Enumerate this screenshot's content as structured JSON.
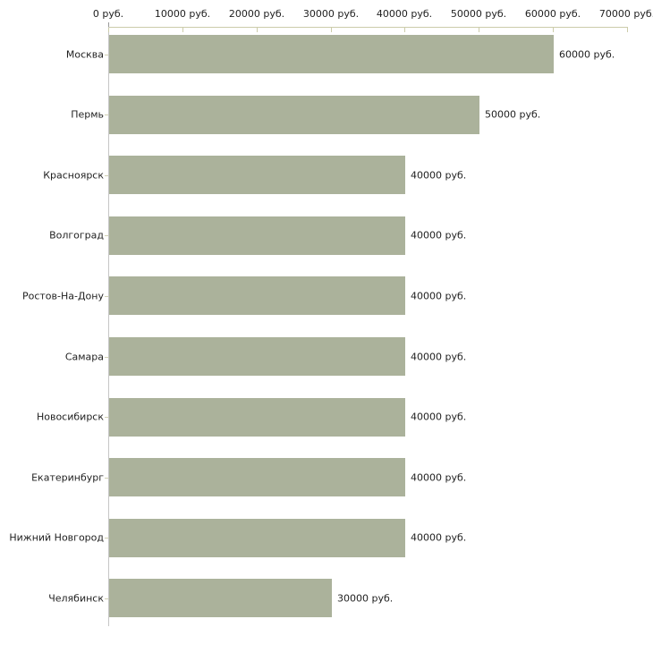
{
  "chart_data": {
    "type": "bar",
    "orientation": "horizontal",
    "title": "",
    "categories": [
      "Москва",
      "Пермь",
      "Красноярск",
      "Волгоград",
      "Ростов-На-Дону",
      "Самара",
      "Новосибирск",
      "Екатеринбург",
      "Нижний Новгород",
      "Челябинск"
    ],
    "values": [
      60000,
      50000,
      40000,
      40000,
      40000,
      40000,
      40000,
      40000,
      40000,
      30000
    ],
    "value_labels": [
      "60000 руб.",
      "50000 руб.",
      "40000 руб.",
      "40000 руб.",
      "40000 руб.",
      "40000 руб.",
      "40000 руб.",
      "40000 руб.",
      "40000 руб.",
      "30000 руб."
    ],
    "x_ticks": [
      0,
      10000,
      20000,
      30000,
      40000,
      50000,
      60000,
      70000
    ],
    "x_tick_labels": [
      "0 руб.",
      "10000 руб.",
      "20000 руб.",
      "30000 руб.",
      "40000 руб.",
      "50000 руб.",
      "60000 руб.",
      "70000 руб."
    ],
    "xlim": [
      0,
      70000
    ],
    "xlabel": "",
    "ylabel": "",
    "legend": "none",
    "grid": false,
    "colors": {
      "bar": "#abb29b",
      "axis_line": "#ccccaa",
      "axis_tick": "#ccccaa",
      "category_tick": "#d0d0b4",
      "plot_border": "#c6c6c6",
      "zero_tick": "#9a9a9a",
      "text": "#1f1f1f"
    }
  }
}
